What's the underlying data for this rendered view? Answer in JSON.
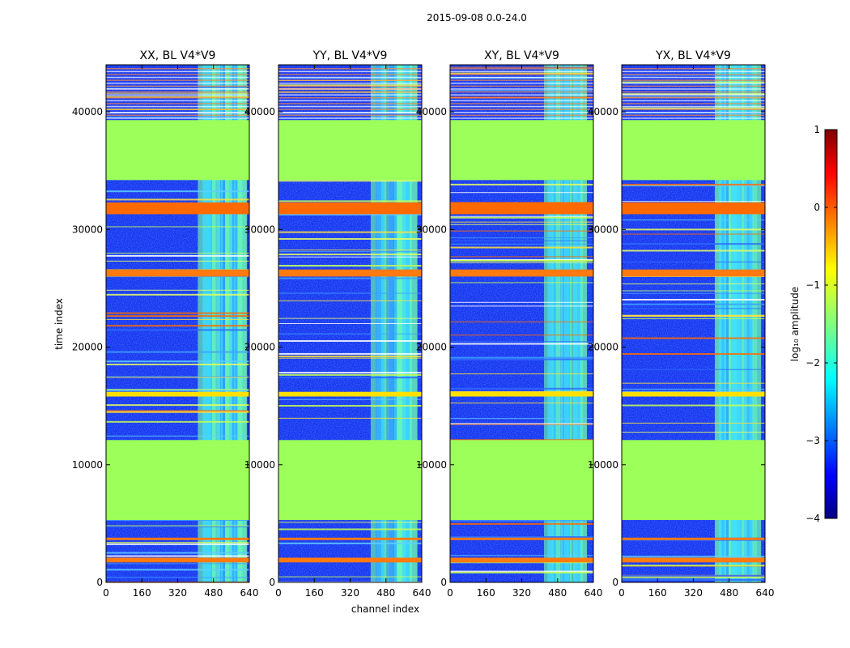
{
  "chart_data": {
    "type": "heatmap",
    "suptitle": "2015-09-08 0.0-24.0",
    "xlabel": "channel index",
    "ylabel": "time index",
    "xlim": [
      0,
      640
    ],
    "ylim": [
      0,
      44000
    ],
    "x_ticks": [
      "0",
      "160",
      "320",
      "480",
      "640"
    ],
    "x_tick_values": [
      0,
      160,
      320,
      480,
      640
    ],
    "y_ticks": [
      "0",
      "10000",
      "20000",
      "30000",
      "40000"
    ],
    "y_tick_values": [
      0,
      10000,
      20000,
      30000,
      40000
    ],
    "panels": [
      {
        "title": "XX, BL V4*V9"
      },
      {
        "title": "YY, BL V4*V9"
      },
      {
        "title": "XY, BL V4*V9"
      },
      {
        "title": "YX, BL V4*V9"
      }
    ],
    "colorbar": {
      "label": "log₁₀ amplitude",
      "range": [
        -4,
        1
      ],
      "ticks": [
        "1",
        "0",
        "−1",
        "−2",
        "−3",
        "−4"
      ],
      "tick_values": [
        1,
        0,
        -1,
        -2,
        -3,
        -4
      ]
    },
    "features": {
      "rfi_channel_band": [
        410,
        600
      ],
      "flagged_time_blocks": [
        [
          5300,
          12100
        ],
        [
          34200,
          39300
        ]
      ],
      "high_amplitude_time_ranges": [
        [
          31300,
          32300
        ],
        [
          26000,
          26600
        ],
        [
          15800,
          16200
        ],
        [
          3600,
          3800
        ],
        [
          1700,
          2100
        ]
      ]
    }
  }
}
